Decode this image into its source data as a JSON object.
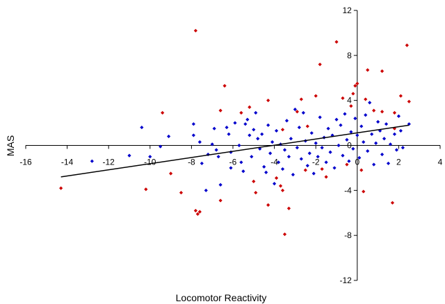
{
  "chart_data": {
    "type": "scatter",
    "xlabel": "Locomotor Reactivity",
    "ylabel": "MAS",
    "xlim": [
      -16,
      4
    ],
    "ylim": [
      -12,
      12
    ],
    "x_ticks": [
      "-16",
      "-14",
      "-12",
      "-10",
      "-8",
      "-6",
      "-4",
      "-2",
      "0",
      "2",
      "4"
    ],
    "y_ticks": [
      "12",
      "8",
      "4",
      "0",
      "-4",
      "-8",
      "-12"
    ],
    "grid": false,
    "legend": "none",
    "trendline": {
      "color": "#000000",
      "from": [
        -14.3,
        -2.8
      ],
      "to": [
        2.5,
        1.8
      ]
    },
    "series": [
      {
        "color": "#cc0000",
        "points": [
          [
            -14.3,
            -3.8
          ],
          [
            -10.2,
            -3.9
          ],
          [
            -9.4,
            2.9
          ],
          [
            -9.0,
            -2.5
          ],
          [
            -8.5,
            -4.2
          ],
          [
            -7.8,
            10.2
          ],
          [
            -7.8,
            -5.8
          ],
          [
            -7.7,
            -6.1
          ],
          [
            -7.6,
            -5.9
          ],
          [
            -6.6,
            3.1
          ],
          [
            -6.4,
            5.3
          ],
          [
            -6.6,
            -4.9
          ],
          [
            -5.6,
            2.9
          ],
          [
            -5.2,
            3.4
          ],
          [
            -5.0,
            -3.2
          ],
          [
            -4.9,
            -4.2
          ],
          [
            -4.3,
            4.0
          ],
          [
            -4.3,
            -5.3
          ],
          [
            -3.9,
            -2.9
          ],
          [
            -3.7,
            -3.6
          ],
          [
            -3.6,
            -4.0
          ],
          [
            -3.5,
            -7.9
          ],
          [
            -3.6,
            1.4
          ],
          [
            -3.3,
            -5.6
          ],
          [
            -2.9,
            3.0
          ],
          [
            -2.7,
            4.1
          ],
          [
            -2.5,
            -2.2
          ],
          [
            -2.4,
            1.7
          ],
          [
            -2.0,
            4.4
          ],
          [
            -1.8,
            7.2
          ],
          [
            -1.7,
            -2.1
          ],
          [
            -1.5,
            -2.8
          ],
          [
            -1.0,
            9.2
          ],
          [
            -0.7,
            4.2
          ],
          [
            -0.3,
            3.5
          ],
          [
            -0.5,
            -1.7
          ],
          [
            -0.2,
            4.6
          ],
          [
            -0.1,
            5.3
          ],
          [
            0.0,
            5.5
          ],
          [
            0.2,
            -2.2
          ],
          [
            0.3,
            -4.1
          ],
          [
            0.4,
            4.1
          ],
          [
            0.5,
            6.7
          ],
          [
            0.8,
            3.1
          ],
          [
            1.2,
            6.6
          ],
          [
            1.2,
            3.0
          ],
          [
            1.7,
            -5.1
          ],
          [
            1.8,
            2.9
          ],
          [
            1.8,
            1.5
          ],
          [
            2.1,
            4.4
          ],
          [
            2.4,
            8.9
          ],
          [
            2.5,
            3.9
          ]
        ]
      },
      {
        "color": "#0000cc",
        "points": [
          [
            -12.8,
            -1.4
          ],
          [
            -11.0,
            -0.9
          ],
          [
            -10.4,
            1.6
          ],
          [
            -10.0,
            -1.0
          ],
          [
            -9.5,
            -0.1
          ],
          [
            -9.1,
            0.8
          ],
          [
            -7.9,
            1.9
          ],
          [
            -7.9,
            0.9
          ],
          [
            -7.6,
            0.3
          ],
          [
            -7.5,
            -1.6
          ],
          [
            -7.3,
            -4.0
          ],
          [
            -7.2,
            -0.8
          ],
          [
            -7.0,
            0.1
          ],
          [
            -6.9,
            1.5
          ],
          [
            -6.8,
            -0.4
          ],
          [
            -6.7,
            -1.0
          ],
          [
            -6.6,
            -3.5
          ],
          [
            -6.3,
            1.6
          ],
          [
            -6.2,
            1.0
          ],
          [
            -6.1,
            -0.6
          ],
          [
            -6.1,
            -2.0
          ],
          [
            -5.9,
            2.0
          ],
          [
            -5.7,
            0.0
          ],
          [
            -5.6,
            -1.5
          ],
          [
            -5.5,
            -2.3
          ],
          [
            -5.4,
            1.9
          ],
          [
            -5.3,
            2.3
          ],
          [
            -5.2,
            0.9
          ],
          [
            -5.1,
            -1.0
          ],
          [
            -5.0,
            1.4
          ],
          [
            -4.9,
            2.9
          ],
          [
            -4.8,
            0.6
          ],
          [
            -4.7,
            -0.3
          ],
          [
            -4.6,
            1.0
          ],
          [
            -4.5,
            -1.9
          ],
          [
            -4.4,
            -2.4
          ],
          [
            -4.3,
            1.8
          ],
          [
            -4.2,
            -0.7
          ],
          [
            -4.1,
            0.3
          ],
          [
            -4.0,
            -3.4
          ],
          [
            -3.9,
            1.3
          ],
          [
            -3.8,
            -1.5
          ],
          [
            -3.7,
            0.1
          ],
          [
            -3.6,
            -2.1
          ],
          [
            -3.5,
            -0.4
          ],
          [
            -3.4,
            2.2
          ],
          [
            -3.3,
            -1.0
          ],
          [
            -3.2,
            0.6
          ],
          [
            -3.1,
            -2.6
          ],
          [
            -3.0,
            3.2
          ],
          [
            -2.9,
            -0.2
          ],
          [
            -2.8,
            1.6
          ],
          [
            -2.7,
            -1.2
          ],
          [
            -2.6,
            2.9
          ],
          [
            -2.5,
            0.4
          ],
          [
            -2.4,
            -1.8
          ],
          [
            -2.3,
            -0.7
          ],
          [
            -2.2,
            1.1
          ],
          [
            -2.1,
            -2.5
          ],
          [
            -2.0,
            0.2
          ],
          [
            -1.9,
            -1.0
          ],
          [
            -1.8,
            2.5
          ],
          [
            -1.7,
            -0.2
          ],
          [
            -1.6,
            0.7
          ],
          [
            -1.5,
            -1.5
          ],
          [
            -1.4,
            1.5
          ],
          [
            -1.3,
            -0.6
          ],
          [
            -1.2,
            0.9
          ],
          [
            -1.1,
            -2.0
          ],
          [
            -1.0,
            2.3
          ],
          [
            -0.9,
            0.0
          ],
          [
            -0.8,
            1.8
          ],
          [
            -0.7,
            -0.9
          ],
          [
            -0.6,
            2.8
          ],
          [
            -0.5,
            0.5
          ],
          [
            -0.4,
            -1.4
          ],
          [
            -0.3,
            1.2
          ],
          [
            -0.2,
            -0.3
          ],
          [
            -0.1,
            2.4
          ],
          [
            0.0,
            0.9
          ],
          [
            0.1,
            -1.1
          ],
          [
            0.2,
            1.7
          ],
          [
            0.3,
            0.3
          ],
          [
            0.4,
            2.7
          ],
          [
            0.5,
            -0.5
          ],
          [
            0.6,
            3.8
          ],
          [
            0.7,
            1.0
          ],
          [
            0.8,
            -1.7
          ],
          [
            0.9,
            0.2
          ],
          [
            1.0,
            2.1
          ],
          [
            1.1,
            1.3
          ],
          [
            1.2,
            -0.8
          ],
          [
            1.3,
            0.6
          ],
          [
            1.4,
            1.9
          ],
          [
            1.5,
            -1.6
          ],
          [
            1.6,
            0.1
          ],
          [
            1.8,
            1.0
          ],
          [
            1.9,
            -0.4
          ],
          [
            2.0,
            2.6
          ],
          [
            2.1,
            1.3
          ],
          [
            2.2,
            -0.2
          ],
          [
            2.5,
            1.9
          ]
        ]
      }
    ]
  }
}
